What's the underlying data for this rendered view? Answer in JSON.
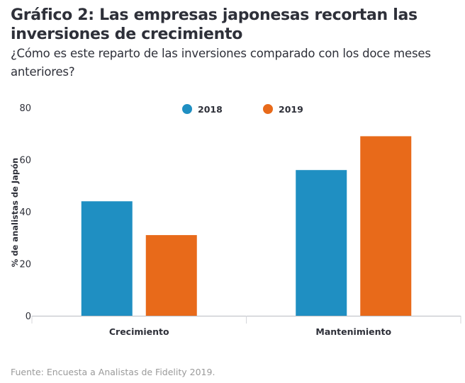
{
  "header": {
    "title": "Gráfico 2: Las empresas japonesas recortan las inversiones de crecimiento",
    "subtitle": "¿Cómo es este reparto de las inversiones comparado con los doce meses anteriores?"
  },
  "footer": {
    "source": "Fuente: Encuesta a Analistas de Fidelity 2019."
  },
  "chart_data": {
    "type": "bar",
    "title": "Gráfico 2: Las empresas japonesas recortan las inversiones de crecimiento",
    "subtitle": "¿Cómo es este reparto de las inversiones comparado con los doce meses anteriores?",
    "xlabel": "",
    "ylabel": "% de analistas de Japón",
    "categories": [
      "Crecimiento",
      "Mantenimiento"
    ],
    "series": [
      {
        "name": "2018",
        "color": "#1f8fc2",
        "values": [
          44,
          56
        ]
      },
      {
        "name": "2019",
        "color": "#e86a1a",
        "values": [
          31,
          69
        ]
      }
    ],
    "ylim": [
      0,
      80
    ],
    "yticks": [
      0,
      20,
      40,
      60,
      80
    ],
    "grid": false,
    "legend": "top-center"
  }
}
